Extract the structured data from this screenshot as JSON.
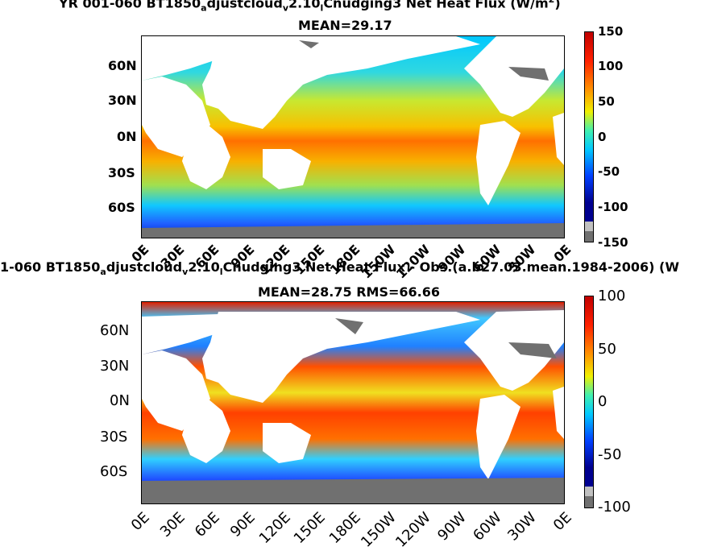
{
  "panel_top": {
    "title_line1": "YR 001-060 BT1850",
    "title_sub_a": "a",
    "title_mid1": "djustcloud",
    "title_sub_v": "v",
    "title_mid2": "2.10",
    "title_sub_l": "l",
    "title_end": "Cnudging3  Net Heat Flux (W/m",
    "title_sup": "2",
    "title_close": ")",
    "subtitle": "MEAN=29.17",
    "lat_labels": [
      "60N",
      "30N",
      "0N",
      "30S",
      "60S"
    ],
    "lon_labels": [
      "0E",
      "30E",
      "60E",
      "90E",
      "120E",
      "150E",
      "180E",
      "150W",
      "120W",
      "90W",
      "60W",
      "30W",
      "0E"
    ],
    "colorbar_ticks": [
      "150",
      "100",
      "50",
      "0",
      "-50",
      "-100",
      "-150"
    ]
  },
  "panel_bottom": {
    "title_line1": "1-060 BT1850",
    "title_sub_a": "a",
    "title_mid1": "djustcloud",
    "title_sub_v": "v",
    "title_mid2": "2.10",
    "title_sub_l": "l",
    "title_end": "Cnudging3  Net Heat Flux - Obs.(a.b27.03.mean.1984-2006) (W",
    "subtitle": "MEAN=28.75 RMS=66.66",
    "lat_labels": [
      "60N",
      "30N",
      "0N",
      "30S",
      "60S"
    ],
    "lon_labels": [
      "0E",
      "30E",
      "60E",
      "90E",
      "120E",
      "150E",
      "180E",
      "150W",
      "120W",
      "90W",
      "60W",
      "30W",
      "0E"
    ],
    "colorbar_ticks": [
      "100",
      "50",
      "0",
      "-50",
      "-100"
    ]
  },
  "colors": {
    "ocean_warm": "#f5b800",
    "ocean_cool": "#00c8ff",
    "polar": "#0033dd",
    "equator_hot": "#ff6a00",
    "land": "#ffffff",
    "ice": "#707070"
  }
}
